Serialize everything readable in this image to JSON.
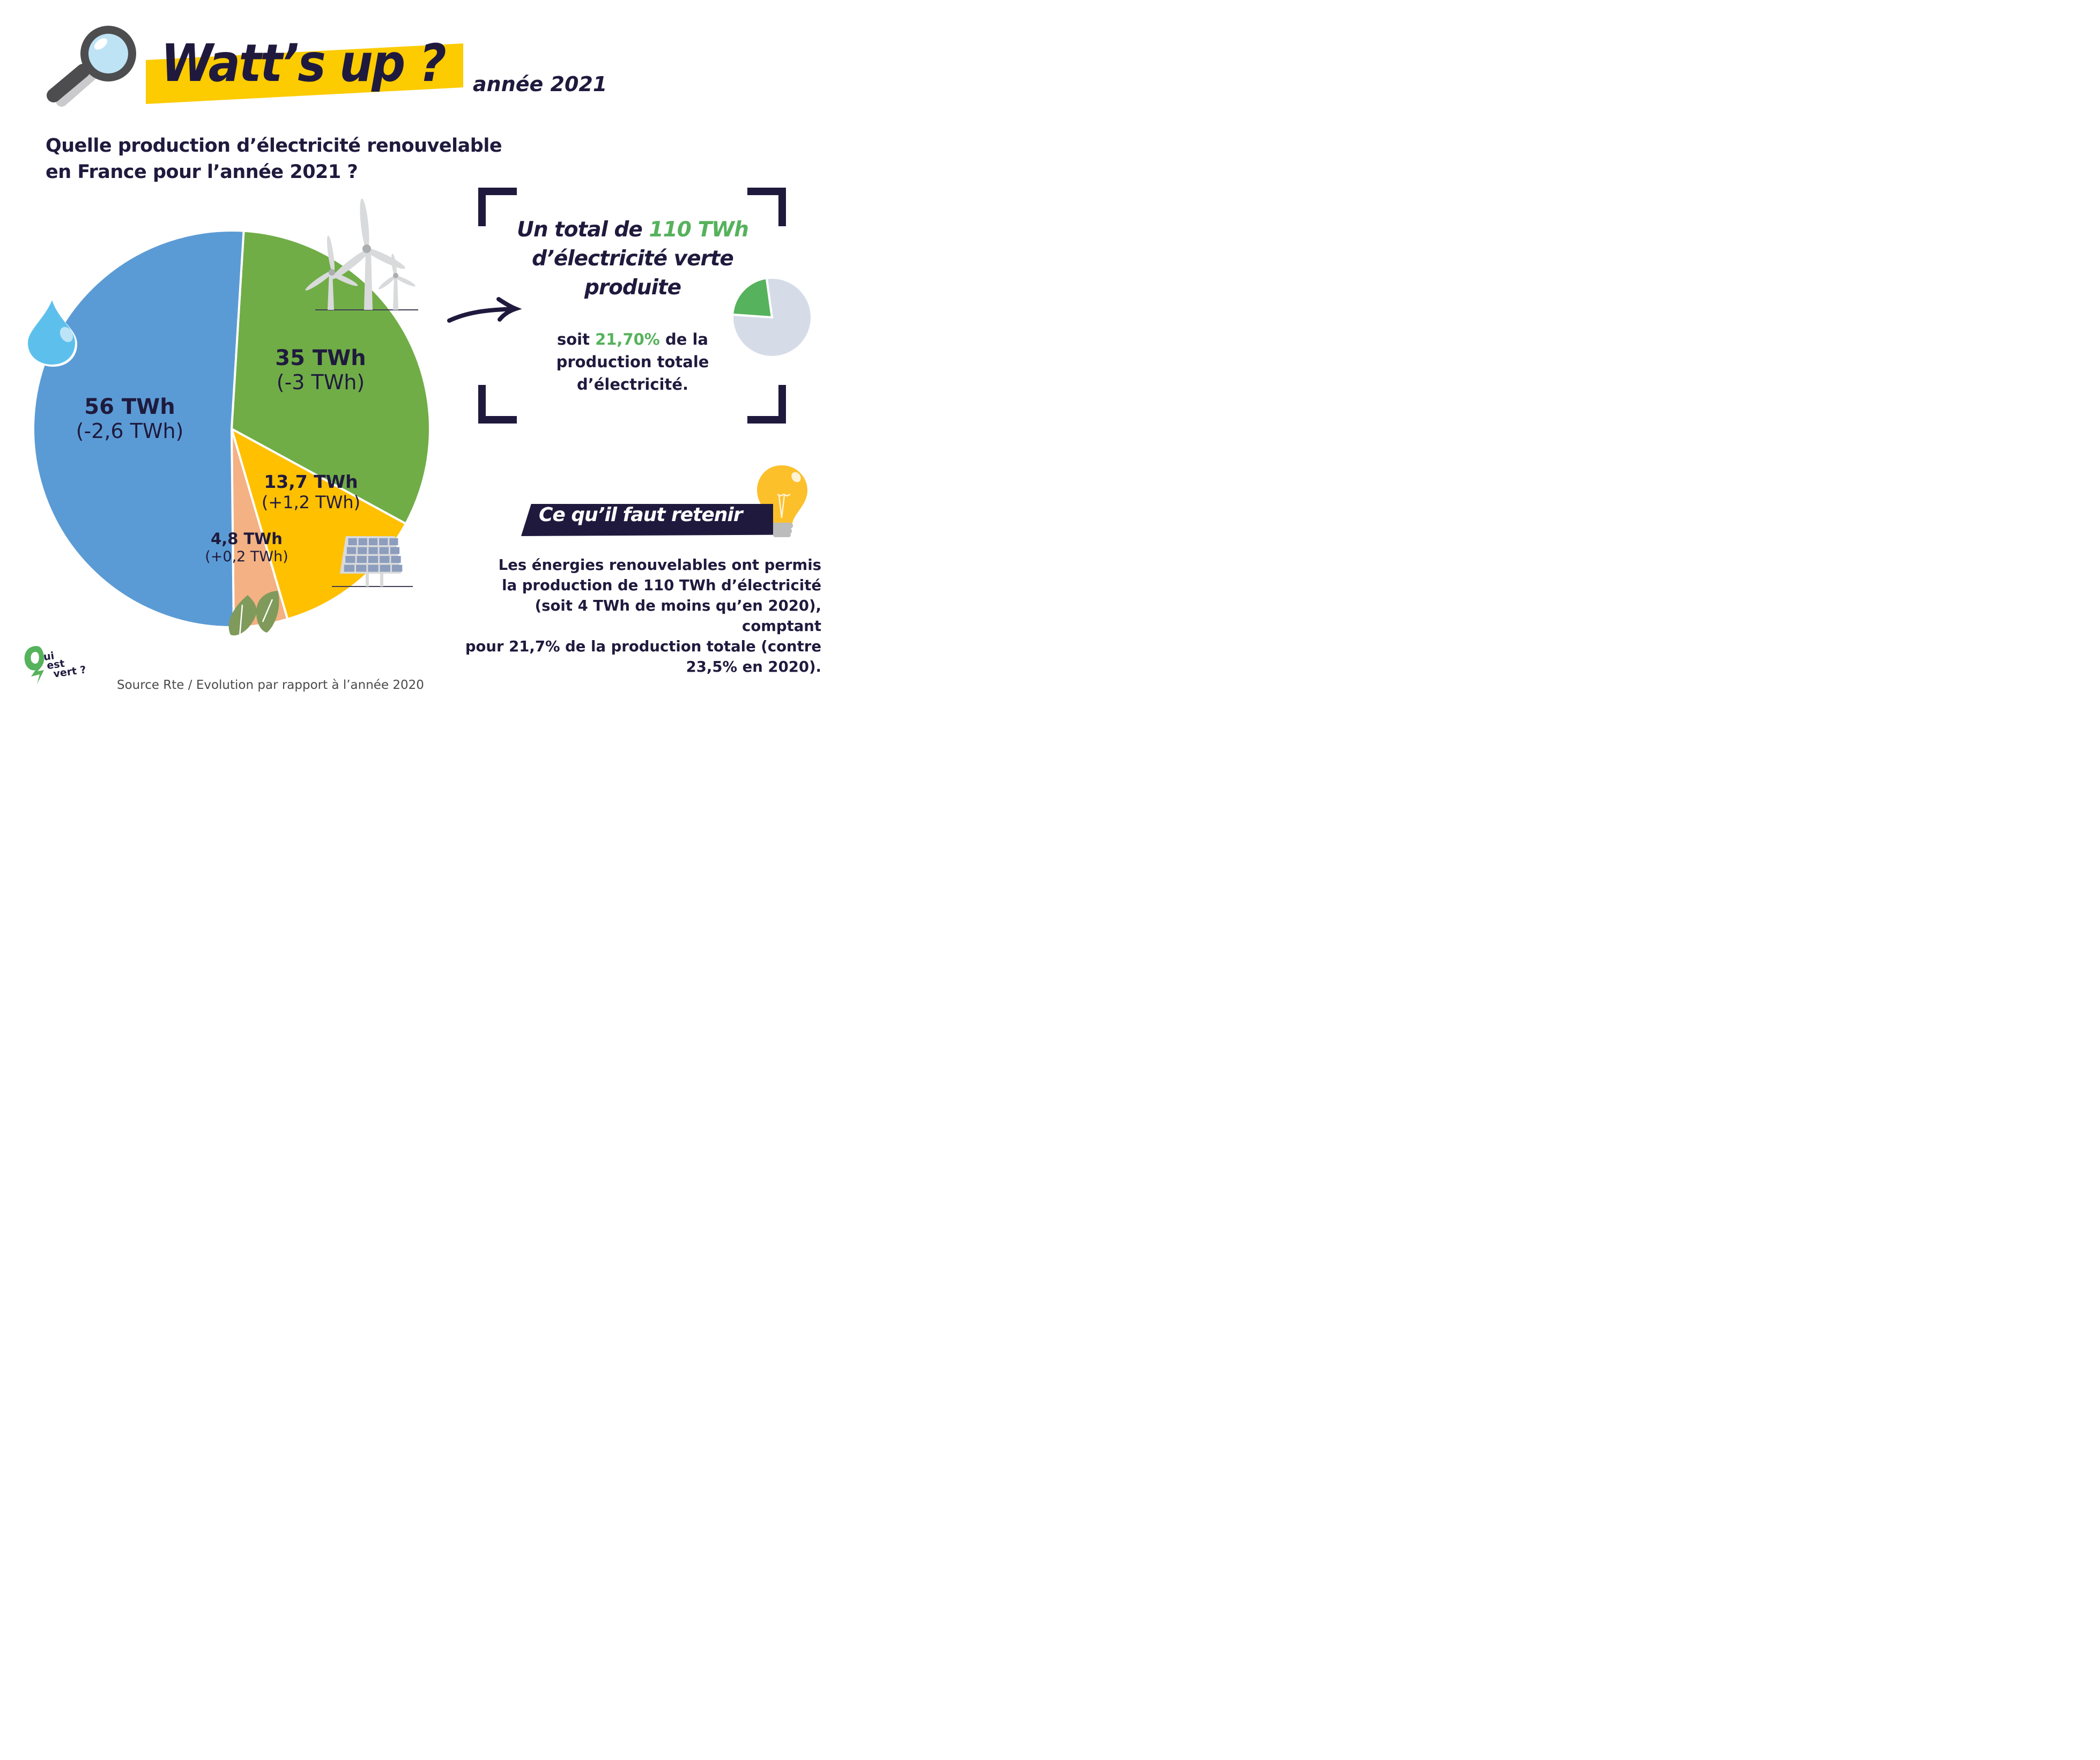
{
  "header": {
    "title": "Watt’s up ?",
    "year_label": "année 2021",
    "question_line1": "Quelle production d’électricité renouvelable",
    "question_line2": "en France pour l’année 2021 ?"
  },
  "colors": {
    "navy": "#1f1a3d",
    "title_band": "#fccb00",
    "hydro": "#5b9bd5",
    "wind": "#70ad47",
    "solar": "#ffc000",
    "bio": "#f4b183",
    "accent_green": "#56b25c",
    "mini_rest": "#d6dce7"
  },
  "chart_data": [
    {
      "type": "pie",
      "title": "Production d’électricité renouvelable en France, 2021",
      "unit": "TWh",
      "categories": [
        "Hydraulique",
        "Éolien",
        "Solaire",
        "Bioénergies"
      ],
      "values": [
        56,
        35,
        13.7,
        4.8
      ],
      "change_vs_2020": [
        -2.6,
        -3,
        1.2,
        0.2
      ],
      "labels": [
        "56 TWh",
        "35 TWh",
        "13,7 TWh",
        "4,8 TWh"
      ],
      "delta_labels": [
        "(-2,6 TWh)",
        "(-3 TWh)",
        "(+1,2 TWh)",
        "(+0,2 TWh)"
      ],
      "icons": [
        "water-drop",
        "wind-turbines",
        "solar-panel",
        "leaves"
      ],
      "colors": [
        "#5b9bd5",
        "#70ad47",
        "#ffc000",
        "#f4b183"
      ],
      "legend": "none"
    },
    {
      "type": "pie",
      "title": "Part du renouvelable dans la production totale",
      "categories": [
        "Renouvelable",
        "Autres"
      ],
      "values": [
        21.7,
        78.3
      ],
      "colors": [
        "#56b25c",
        "#d6dce7"
      ]
    }
  ],
  "slices": [
    {
      "value": "56 TWh",
      "delta": "(-2,6 TWh)"
    },
    {
      "value": "35 TWh",
      "delta": "(-3 TWh)"
    },
    {
      "value": "13,7 TWh",
      "delta": "(+1,2 TWh)"
    },
    {
      "value": "4,8 TWh",
      "delta": "(+0,2 TWh)"
    }
  ],
  "total_box": {
    "line1_prefix": "Un total de ",
    "line1_highlight": "110 TWh",
    "line2": "d’électricité verte",
    "line3": "produite",
    "share_prefix": "soit ",
    "share_highlight": "21,70%",
    "share_suffix": " de la",
    "share_line2": "production totale",
    "share_line3": "d’électricité."
  },
  "retenir": {
    "heading": "Ce qu’il faut retenir",
    "lines": [
      "Les énergies renouvelables ont permis",
      "la production de 110 TWh d’électricité",
      "(soit 4 TWh de moins qu’en 2020), comptant",
      "pour 21,7% de la production totale (contre",
      "23,5% en 2020)."
    ]
  },
  "footer": {
    "logo_text": [
      "ui",
      "est",
      "vert ?"
    ],
    "source": "Source Rte / Evolution par rapport à l’année 2020"
  }
}
